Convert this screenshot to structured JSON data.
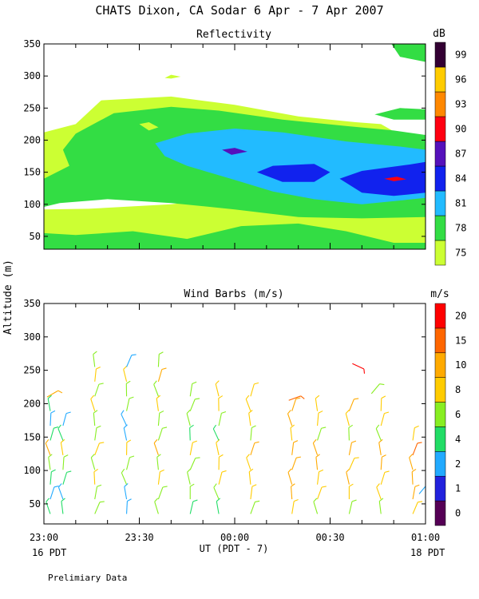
{
  "page": {
    "title": "CHATS Dixon, CA   Sodar    6 Apr -  7 Apr 2007",
    "left_date": "16 PDT",
    "right_date": "18 PDT",
    "footer_note": "Prelimiary Data",
    "shared_ylabel": "Altitude (m)"
  },
  "chart_data": [
    {
      "type": "heatmap",
      "title": "Reflectivity",
      "ylabel": "Altitude (m)",
      "xlim": [
        "23:00",
        "01:00"
      ],
      "ylim": [
        30,
        350
      ],
      "y_ticks": [
        50,
        100,
        150,
        200,
        250,
        300,
        350
      ],
      "colorbar_unit": "dB",
      "colorbar_levels": [
        75,
        78,
        81,
        84,
        87,
        90,
        93,
        96,
        99
      ],
      "colorbar_colors": [
        "#ccff33",
        "#33dd44",
        "#22bbff",
        "#1122ee",
        "#5511bb",
        "#ff0011",
        "#ff8800",
        "#ffcc00",
        "#330033"
      ],
      "grid": false
    },
    {
      "type": "scatter",
      "title": "Wind Barbs (m/s)",
      "xlabel": "UT  (PDT - 7)",
      "x_ticks": [
        "23:00",
        "23:30",
        "00:00",
        "00:30",
        "01:00"
      ],
      "ylim": [
        20,
        350
      ],
      "y_ticks": [
        50,
        100,
        150,
        200,
        250,
        300,
        350
      ],
      "colorbar_unit": "m/s",
      "colorbar_levels": [
        0,
        1,
        2,
        4,
        6,
        8,
        10,
        15,
        20
      ],
      "colorbar_colors": [
        "#550055",
        "#2222dd",
        "#22aaff",
        "#22dd66",
        "#88ee22",
        "#ffcc00",
        "#ffaa00",
        "#ff6600",
        "#ff0000"
      ],
      "grid": false
    }
  ]
}
